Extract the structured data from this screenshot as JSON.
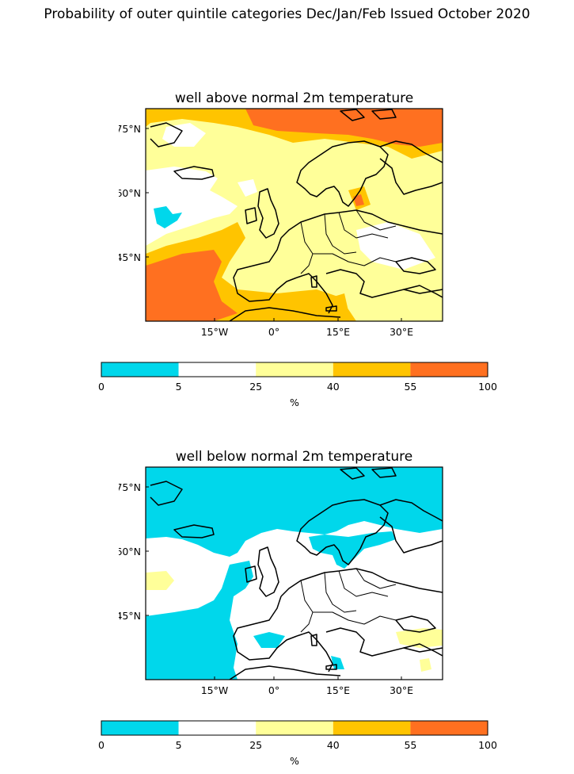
{
  "figure": {
    "title": "Probability of outer quintile categories Dec/Jan/Feb Issued October 2020"
  },
  "legend": {
    "unit": "%",
    "ticks": [
      "0",
      "5",
      "25",
      "40",
      "55",
      "100"
    ],
    "bins": [
      {
        "range": "0-5",
        "color": "#00d7eb"
      },
      {
        "range": "5-25",
        "color": "#ffffff"
      },
      {
        "range": "25-40",
        "color": "#ffff99"
      },
      {
        "range": "40-55",
        "color": "#ffc400"
      },
      {
        "range": "55-100",
        "color": "#ff7020"
      }
    ]
  },
  "axes": {
    "lon_labels": [
      "15°W",
      "0°",
      "15°E",
      "30°E"
    ],
    "lat_labels": [
      "75°N",
      "60°N",
      "45°N"
    ]
  },
  "panels": [
    {
      "title": "well above normal 2m temperature",
      "dominant_category": "25-40"
    },
    {
      "title": "well below normal 2m temperature",
      "dominant_category": "5-25"
    }
  ]
}
